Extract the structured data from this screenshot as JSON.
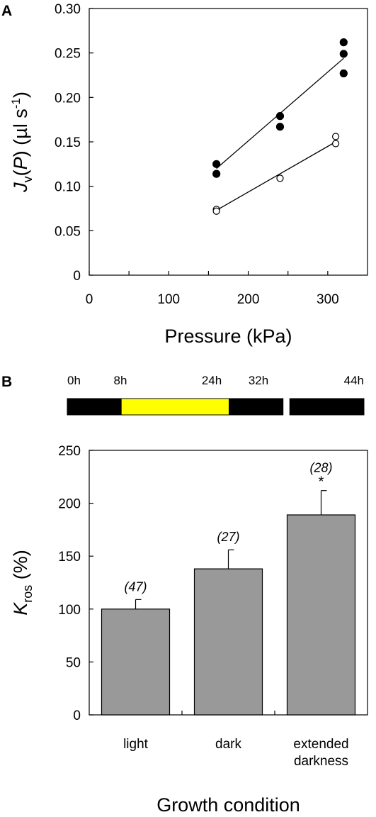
{
  "chart_data": [
    {
      "panel": "A",
      "type": "scatter",
      "xlabel": "Pressure (kPa)",
      "ylabel": {
        "main": "J",
        "sub": "v",
        "mid": "(",
        "ital": "P",
        "end": ") (µl s",
        "sup": "-1",
        "close": ")"
      },
      "xlim": [
        0,
        350
      ],
      "ylim": [
        0,
        0.3
      ],
      "xticks": [
        0,
        100,
        200,
        300
      ],
      "xticks_minor": [
        50,
        150,
        250
      ],
      "yticks": [
        0,
        0.05,
        0.1,
        0.15,
        0.2,
        0.25,
        0.3
      ],
      "ytick_labels": [
        "0",
        "0.05",
        "0.10",
        "0.15",
        "0.20",
        "0.25",
        "0.30"
      ],
      "grid": false,
      "series": [
        {
          "marker": "filled-circle",
          "points": [
            [
              160,
              0.125
            ],
            [
              160,
              0.114
            ],
            [
              240,
              0.179
            ],
            [
              240,
              0.167
            ],
            [
              320,
              0.262
            ],
            [
              320,
              0.249
            ],
            [
              320,
              0.227
            ]
          ],
          "fit": [
            [
              160,
              0.12
            ],
            [
              320,
              0.244
            ]
          ]
        },
        {
          "marker": "open-circle",
          "points": [
            [
              160,
              0.074
            ],
            [
              160,
              0.072
            ],
            [
              240,
              0.109
            ],
            [
              310,
              0.156
            ],
            [
              310,
              0.148
            ]
          ],
          "fit": [
            [
              160,
              0.073
            ],
            [
              310,
              0.15
            ]
          ]
        }
      ]
    },
    {
      "panel": "B",
      "type": "bar",
      "timeline": {
        "labels": [
          "0h",
          "8h",
          "24h",
          "32h",
          "44h"
        ],
        "segments": [
          {
            "from": 0,
            "to": 8,
            "color": "#000000"
          },
          {
            "from": 8,
            "to": 24,
            "color": "#ffff00"
          },
          {
            "from": 24,
            "to": 32,
            "color": "#000000"
          },
          {
            "from": 33,
            "to": 44,
            "color": "#000000"
          }
        ]
      },
      "categories": [
        [
          "light"
        ],
        [
          "dark"
        ],
        [
          "extended",
          "darkness"
        ]
      ],
      "values": [
        100,
        138,
        189
      ],
      "errors": [
        9,
        18,
        23
      ],
      "annotations": [
        "(47)",
        "(27)",
        "(28)"
      ],
      "significance": [
        "",
        "",
        "*"
      ],
      "bar_color": "#999999",
      "xlabel": "Growth condition",
      "ylabel": {
        "main": "K",
        "sub": "ros",
        "rest": " (%)"
      },
      "ylim": [
        0,
        250
      ],
      "yticks": [
        0,
        50,
        100,
        150,
        200,
        250
      ],
      "grid": false
    }
  ]
}
